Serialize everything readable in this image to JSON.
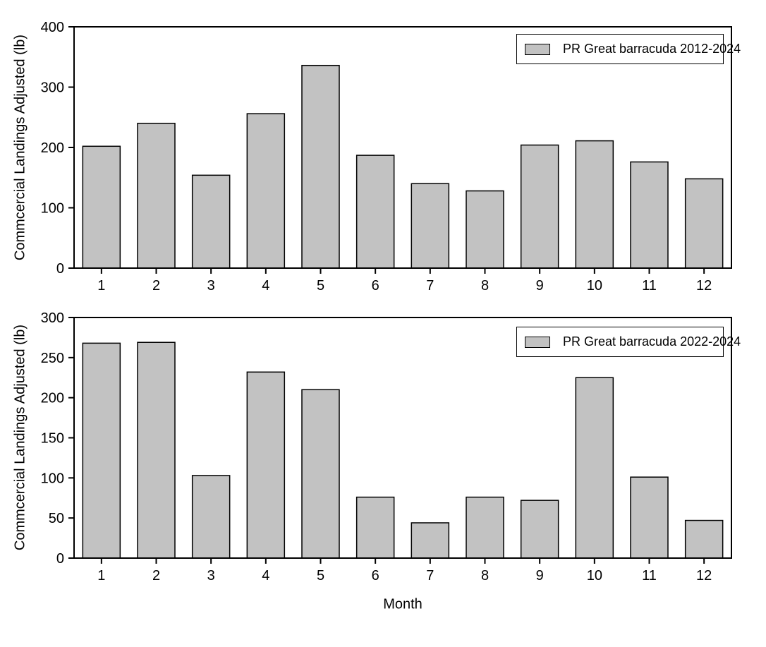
{
  "figure": {
    "background": "#ffffff",
    "bar_fill": "#c2c2c2",
    "bar_stroke": "#000000",
    "axis_color": "#000000",
    "text_color": "#000000"
  },
  "chart_data": [
    {
      "type": "bar",
      "title": "",
      "legend": "PR Great barracuda 2012-2024",
      "legend_position": "top-right",
      "xlabel": "",
      "ylabel": "Commcercial Landings Adjusted (lb)",
      "categories": [
        "1",
        "2",
        "3",
        "4",
        "5",
        "6",
        "7",
        "8",
        "9",
        "10",
        "11",
        "12"
      ],
      "values": [
        202,
        240,
        154,
        256,
        336,
        187,
        140,
        128,
        204,
        211,
        176,
        148
      ],
      "ylim": [
        0,
        400
      ],
      "yticks": [
        0,
        100,
        200,
        300,
        400
      ],
      "grid": false
    },
    {
      "type": "bar",
      "title": "",
      "legend": "PR Great barracuda 2022-2024",
      "legend_position": "top-right",
      "xlabel": "Month",
      "ylabel": "Commcercial Landings Adjusted (lb)",
      "categories": [
        "1",
        "2",
        "3",
        "4",
        "5",
        "6",
        "7",
        "8",
        "9",
        "10",
        "11",
        "12"
      ],
      "values": [
        268,
        269,
        103,
        232,
        210,
        76,
        44,
        76,
        72,
        225,
        101,
        47
      ],
      "ylim": [
        0,
        300
      ],
      "yticks": [
        0,
        50,
        100,
        150,
        200,
        250,
        300
      ],
      "grid": false
    }
  ]
}
